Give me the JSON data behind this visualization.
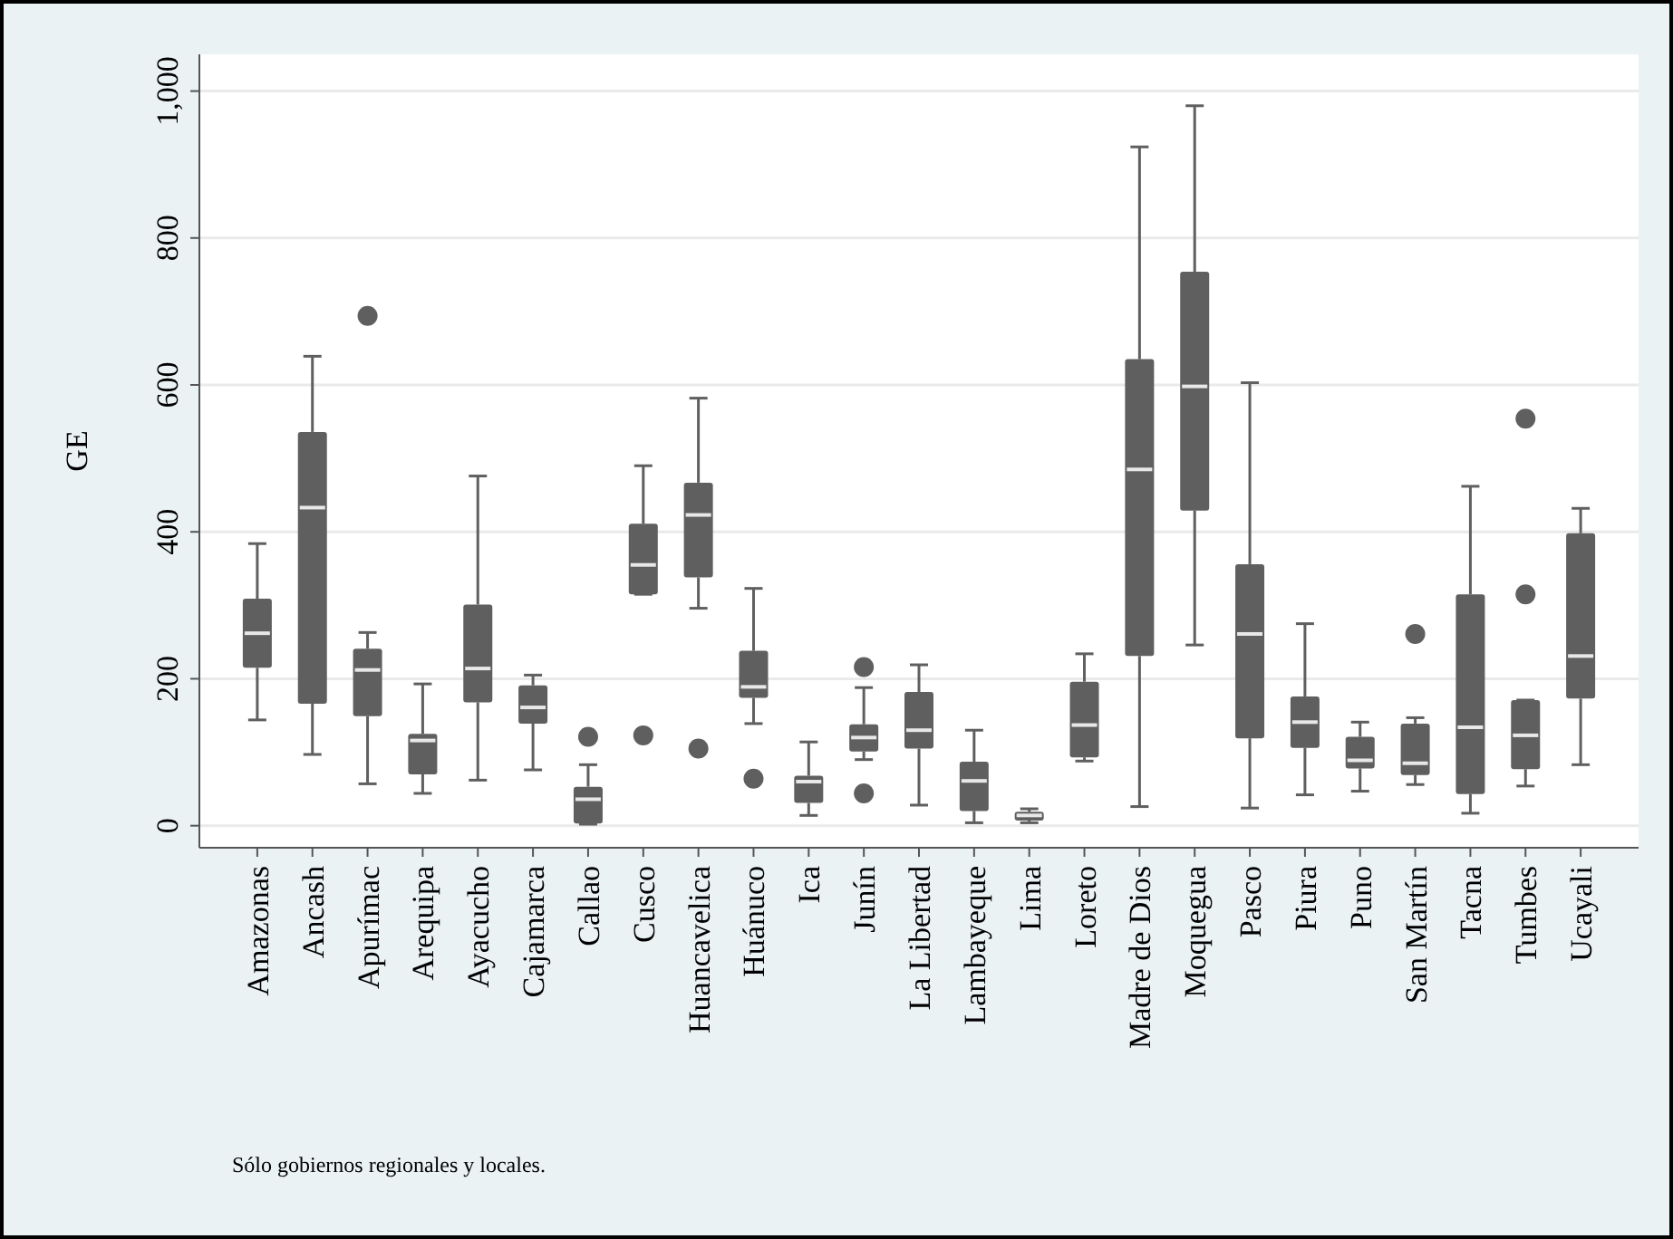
{
  "chart_data": {
    "type": "box",
    "ylabel": "GE",
    "color": "#5f5f5f",
    "grid": "y",
    "categories": [
      "Amazonas",
      "Ancash",
      "Apurímac",
      "Arequipa",
      "Ayacucho",
      "Cajamarca",
      "Callao",
      "Cusco",
      "Huancavelica",
      "Huánuco",
      "Ica",
      "Junín",
      "La Libertad",
      "Lambayeque",
      "Lima",
      "Loreto",
      "Madre de Dios",
      "Moquegua",
      "Pasco",
      "Piura",
      "Puno",
      "San Martín",
      "Tacna",
      "Tumbes",
      "Ucayali"
    ],
    "ylim": [
      -30,
      1050
    ],
    "yticks": [
      0,
      200,
      400,
      600,
      800,
      {
        "value": 1000,
        "label": "1,000"
      }
    ],
    "boxes": [
      {
        "low": 144,
        "q1": 215,
        "median": 262,
        "q3": 309,
        "high": 384
      },
      {
        "low": 97,
        "q1": 166,
        "median": 433,
        "q3": 536,
        "high": 639
      },
      {
        "low": 57,
        "q1": 149,
        "median": 212,
        "q3": 241,
        "high": 263,
        "outliers": [
          694
        ]
      },
      {
        "low": 44,
        "q1": 70,
        "median": 116,
        "q3": 125,
        "high": 193
      },
      {
        "low": 62,
        "q1": 168,
        "median": 214,
        "q3": 301,
        "high": 476
      },
      {
        "low": 76,
        "q1": 139,
        "median": 161,
        "q3": 191,
        "high": 205
      },
      {
        "low": 2,
        "q1": 3,
        "median": 36,
        "q3": 53,
        "high": 83,
        "outliers": [
          121
        ]
      },
      {
        "low": 315,
        "q1": 315,
        "median": 355,
        "q3": 411,
        "high": 490,
        "outliers": [
          123
        ]
      },
      {
        "low": 296,
        "q1": 338,
        "median": 423,
        "q3": 467,
        "high": 582,
        "outliers": [
          105
        ]
      },
      {
        "low": 139,
        "q1": 174,
        "median": 189,
        "q3": 238,
        "high": 323,
        "outliers": [
          64
        ]
      },
      {
        "low": 14,
        "q1": 31,
        "median": 60,
        "q3": 68,
        "high": 114
      },
      {
        "low": 90,
        "q1": 101,
        "median": 120,
        "q3": 138,
        "high": 188,
        "outliers": [
          216,
          44
        ]
      },
      {
        "low": 28,
        "q1": 105,
        "median": 130,
        "q3": 182,
        "high": 219
      },
      {
        "low": 4,
        "q1": 20,
        "median": 61,
        "q3": 87,
        "high": 130
      },
      {
        "low": 4,
        "q1": 7,
        "median": 14,
        "q3": 19,
        "high": 23
      },
      {
        "low": 88,
        "q1": 93,
        "median": 137,
        "q3": 196,
        "high": 234
      },
      {
        "low": 26,
        "q1": 231,
        "median": 485,
        "q3": 635,
        "high": 924
      },
      {
        "low": 246,
        "q1": 429,
        "median": 598,
        "q3": 754,
        "high": 980
      },
      {
        "low": 24,
        "q1": 119,
        "median": 261,
        "q3": 356,
        "high": 603
      },
      {
        "low": 42,
        "q1": 106,
        "median": 141,
        "q3": 176,
        "high": 275
      },
      {
        "low": 47,
        "q1": 78,
        "median": 89,
        "q3": 121,
        "high": 141
      },
      {
        "low": 56,
        "q1": 69,
        "median": 85,
        "q3": 139,
        "high": 147,
        "outliers": [
          261
        ]
      },
      {
        "low": 17,
        "q1": 43,
        "median": 134,
        "q3": 315,
        "high": 462
      },
      {
        "low": 54,
        "q1": 77,
        "median": 123,
        "q3": 171,
        "high": 171,
        "outliers": [
          554,
          315
        ]
      },
      {
        "low": 83,
        "q1": 173,
        "median": 231,
        "q3": 398,
        "high": 432
      }
    ],
    "annotations": [
      "Sólo gobiernos regionales y locales."
    ]
  }
}
